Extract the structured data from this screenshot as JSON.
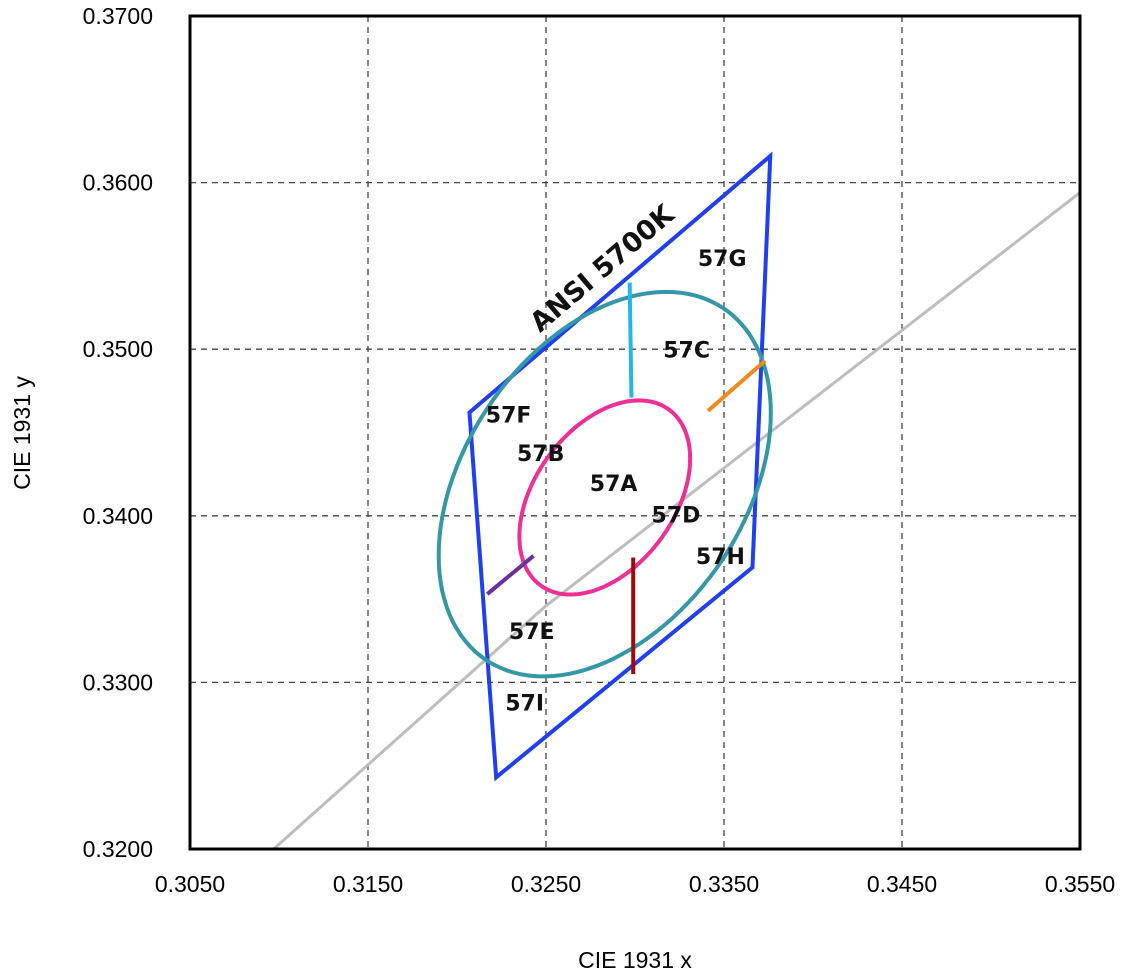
{
  "chart_data": {
    "type": "line",
    "xlabel": "CIE 1931 x",
    "ylabel": "CIE 1931 y",
    "xlim": [
      0.305,
      0.355
    ],
    "ylim": [
      0.32,
      0.37
    ],
    "x_ticks": [
      "0.3050",
      "0.3150",
      "0.3250",
      "0.3350",
      "0.3450",
      "0.3550"
    ],
    "y_ticks": [
      "0.3200",
      "0.3300",
      "0.3400",
      "0.3500",
      "0.3600",
      "0.3700"
    ],
    "grid": "dashed",
    "quadrangle_label": "ANSI 5700K",
    "quadrangle": {
      "color": "#1f3ff0",
      "points": [
        [
          0.3207,
          0.3462
        ],
        [
          0.3376,
          0.3616
        ],
        [
          0.3366,
          0.3369
        ],
        [
          0.3222,
          0.3243
        ]
      ]
    },
    "blackbody_locus": {
      "color": "#bdbdbd",
      "points": [
        [
          0.3097,
          0.32
        ],
        [
          0.325,
          0.3346
        ],
        [
          0.34,
          0.347
        ],
        [
          0.355,
          0.3594
        ]
      ]
    },
    "ellipses": [
      {
        "name": "57A",
        "color": "#ee2f95",
        "center": [
          0.3283,
          0.3411
        ],
        "semi_axes": [
          0.0064,
          0.004
        ],
        "angle_deg": 58
      },
      {
        "name": "57C",
        "color": "#3497a5",
        "center": [
          0.3283,
          0.3419
        ],
        "semi_axes": [
          0.0125,
          0.008
        ],
        "angle_deg": 60
      }
    ],
    "segments": [
      {
        "color": "#1fb8ec",
        "from": [
          0.3297,
          0.354
        ],
        "to": [
          0.3298,
          0.3471
        ]
      },
      {
        "color": "#f08a1c",
        "from": [
          0.3341,
          0.3463
        ],
        "to": [
          0.3373,
          0.3493
        ]
      },
      {
        "color": "#6a2fa0",
        "from": [
          0.3217,
          0.3353
        ],
        "to": [
          0.3243,
          0.3376
        ]
      },
      {
        "color": "#9b0d0d",
        "from": [
          0.3299,
          0.3305
        ],
        "to": [
          0.3299,
          0.3375
        ]
      }
    ],
    "region_labels": [
      {
        "text": "57G",
        "x": 0.3349,
        "y": 0.355
      },
      {
        "text": "57C",
        "x": 0.3329,
        "y": 0.3495
      },
      {
        "text": "57F",
        "x": 0.3229,
        "y": 0.3456
      },
      {
        "text": "57B",
        "x": 0.3247,
        "y": 0.3433
      },
      {
        "text": "57A",
        "x": 0.3288,
        "y": 0.3415
      },
      {
        "text": "57D",
        "x": 0.3323,
        "y": 0.3396
      },
      {
        "text": "57H",
        "x": 0.3348,
        "y": 0.3371
      },
      {
        "text": "57E",
        "x": 0.3242,
        "y": 0.3326
      },
      {
        "text": "57I",
        "x": 0.3238,
        "y": 0.3283
      }
    ]
  }
}
